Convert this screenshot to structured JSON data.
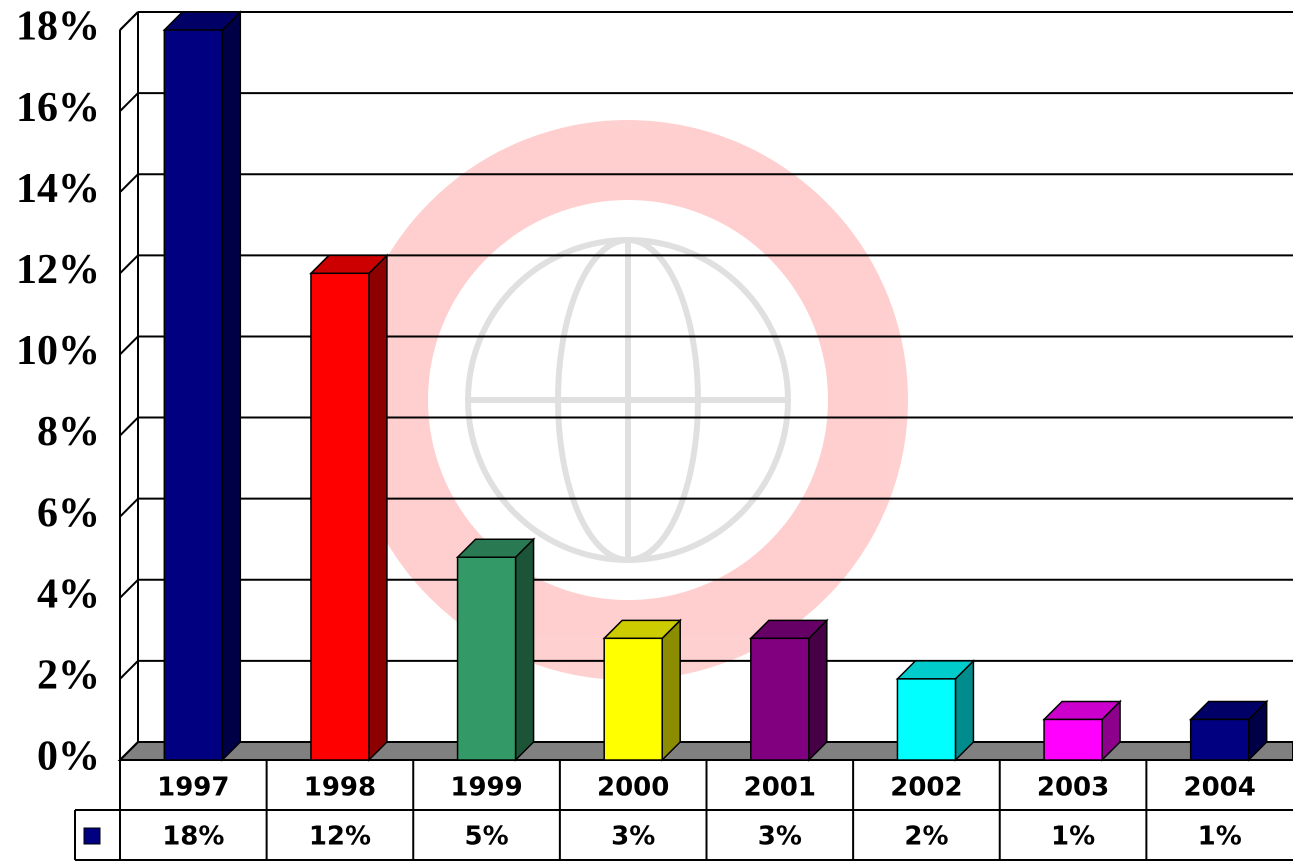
{
  "chart_data": {
    "type": "bar3d",
    "categories": [
      "1997",
      "1998",
      "1999",
      "2000",
      "2001",
      "2002",
      "2003",
      "2004"
    ],
    "values": [
      18,
      12,
      5,
      3,
      3,
      2,
      1,
      1
    ],
    "value_labels": [
      "18%",
      "12%",
      "5%",
      "3%",
      "3%",
      "2%",
      "1%",
      "1%"
    ],
    "colors": [
      "#000080",
      "#ff0000",
      "#339966",
      "#ffff00",
      "#800080",
      "#00ffff",
      "#ff00ff",
      "#000080"
    ],
    "ylim": [
      0,
      18
    ],
    "yticks": [
      {
        "value": 0,
        "label": "0%"
      },
      {
        "value": 2,
        "label": "2%"
      },
      {
        "value": 4,
        "label": "4%"
      },
      {
        "value": 6,
        "label": "6%"
      },
      {
        "value": 8,
        "label": "8%"
      },
      {
        "value": 10,
        "label": "10%"
      },
      {
        "value": 12,
        "label": "12%"
      },
      {
        "value": 14,
        "label": "14%"
      },
      {
        "value": 16,
        "label": "16%"
      },
      {
        "value": 18,
        "label": "18%"
      }
    ],
    "grid": true
  }
}
